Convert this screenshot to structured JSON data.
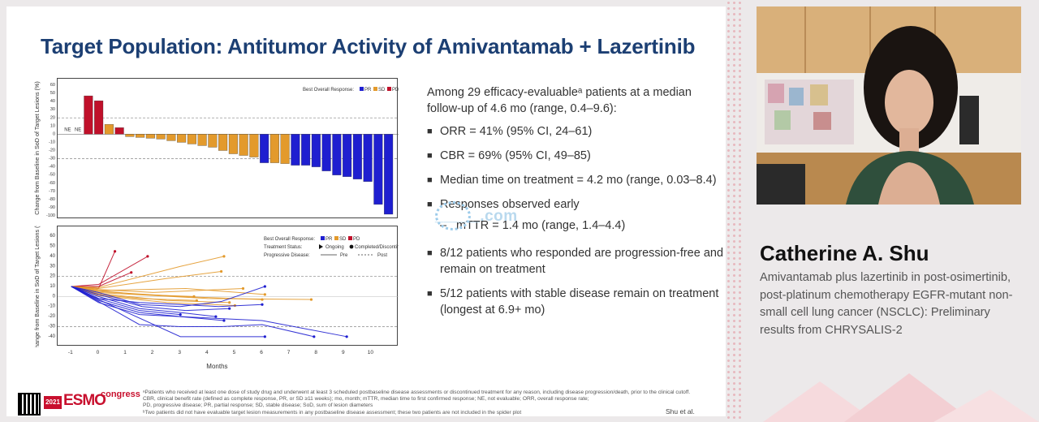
{
  "slide": {
    "title": "Target Population: Antitumor Activity of Amivantamab + Lazertinib",
    "bullets": {
      "intro": "Among 29 efficacy-evaluableᵃ patients at a median follow-up of 4.6 mo (range, 0.4–9.6):",
      "items": [
        "ORR = 41% (95% CI, 24–61)",
        "CBR = 69% (95% CI, 49–85)",
        "Median time on treatment = 4.2 mo (range, 0.03–8.4)",
        "Responses observed early"
      ],
      "sub_item": "mTTR = 1.4 mo (range, 1.4–4.4)",
      "items_after": [
        "8/12 patients who responded are progression-free and remain on treatment",
        "5/12 patients with stable disease remain on treatment (longest at 6.9+ mo)"
      ]
    },
    "watermark": "_____.com",
    "footnote_lines": [
      "ᵃPatients who received at least one dose of study drug and underwent at least 3 scheduled postbaseline disease assessments or discontinued treatment for any reason, including disease progression/death, prior to the clinical cutoff.",
      "CBR, clinical benefit rate (defined as complete response, PR, or SD ≥11 weeks); mo, month; mTTR, median time to first confirmed response; NE, not evaluable; ORR, overall response rate;",
      "PD, progressive disease; PR, partial response; SD, stable disease; SoD, sum of lesion diameters",
      "ᵇTwo patients did not have evaluable target lesion measurements in any postbaseline disease assessment; these two patients are not included in the spider plot"
    ],
    "citation": "Shu et al. #1193MO",
    "logo": {
      "year": "2021",
      "name": "ESMO",
      "suffix": "congress"
    }
  },
  "speaker": {
    "name": "Catherine A. Shu",
    "talk_title": "Amivantamab plus lazertinib in post-osimertinib, post-platinum chemotherapy EGFR-mutant non-small cell lung cancer (NSCLC): Preliminary results from CHRYSALIS-2"
  },
  "colors": {
    "PR": "#1f1fd0",
    "SD": "#e39a2c",
    "PD": "#c0102a",
    "title": "#1c3f73"
  },
  "chart_data": [
    {
      "type": "bar",
      "ylabel": "Change from Baseline in SoD of Target Lesions (%)",
      "ylim": [
        -100,
        60
      ],
      "yticks": [
        60,
        50,
        40,
        30,
        20,
        10,
        0,
        -10,
        -20,
        -30,
        -40,
        -50,
        -60,
        -70,
        -80,
        -90,
        -100
      ],
      "reference_lines": [
        20,
        -30
      ],
      "legend": {
        "title": "Best Overall Response:",
        "entries": [
          "PR",
          "SD",
          "PD"
        ],
        "position": "top-right"
      },
      "ne_labels": [
        "NE",
        "NE"
      ],
      "values": [
        0,
        0,
        47,
        41,
        12,
        8,
        -3,
        -4,
        -5,
        -6,
        -8,
        -10,
        -12,
        -14,
        -16,
        -20,
        -24,
        -26,
        -28,
        -35,
        -35,
        -36,
        -38,
        -38,
        -40,
        -45,
        -50,
        -52,
        -55,
        -58,
        -86,
        -98
      ],
      "responses": [
        "NE",
        "NE",
        "PD",
        "PD",
        "SD",
        "PD",
        "SD",
        "SD",
        "SD",
        "SD",
        "SD",
        "SD",
        "SD",
        "SD",
        "SD",
        "SD",
        "SD",
        "SD",
        "SD",
        "PR",
        "SD",
        "SD",
        "PR",
        "PR",
        "PR",
        "PR",
        "PR",
        "PR",
        "PR",
        "PR",
        "PR",
        "PR"
      ]
    },
    {
      "type": "line",
      "xlabel": "Months",
      "ylabel": "Change from Baseline in SoD of Target Lesions (%)",
      "xlim": [
        -1.5,
        11
      ],
      "xticks": [
        -1,
        0,
        1,
        2,
        3,
        4,
        5,
        6,
        7,
        8,
        9,
        10
      ],
      "ylim": [
        -45,
        65
      ],
      "yticks": [
        60,
        50,
        40,
        30,
        20,
        10,
        0,
        -10,
        -20,
        -30,
        -40
      ],
      "reference_lines": [
        20,
        -30
      ],
      "legend": {
        "response_title": "Best Overall Response:",
        "response_entries": [
          "PR",
          "SD",
          "PD"
        ],
        "status_title": "Treatment Status:",
        "status_entries": [
          "Ongoing",
          "Completed/Discontinued"
        ],
        "progression_title": "Progressive Disease:",
        "progression_entries": [
          "Pre",
          "Post"
        ],
        "position": "top-right"
      },
      "series": [
        {
          "response": "PD",
          "x": [
            -1,
            0,
            0.6
          ],
          "y": [
            10,
            8,
            45
          ]
        },
        {
          "response": "PD",
          "x": [
            -1,
            0,
            1.8
          ],
          "y": [
            10,
            12,
            40
          ]
        },
        {
          "response": "PD",
          "x": [
            -1,
            0,
            1.2
          ],
          "y": [
            10,
            10,
            24
          ]
        },
        {
          "response": "SD",
          "x": [
            -1,
            0,
            2.5,
            4.5
          ],
          "y": [
            10,
            8,
            18,
            25
          ]
        },
        {
          "response": "SD",
          "x": [
            -1,
            0,
            3,
            4.6
          ],
          "y": [
            10,
            9,
            30,
            40
          ]
        },
        {
          "response": "SD",
          "x": [
            -1,
            0,
            3.2,
            6.1
          ],
          "y": [
            10,
            6,
            8,
            2
          ]
        },
        {
          "response": "SD",
          "x": [
            -1,
            0,
            2,
            5.3
          ],
          "y": [
            10,
            7,
            4,
            8
          ]
        },
        {
          "response": "SD",
          "x": [
            -1,
            0,
            3,
            6
          ],
          "y": [
            10,
            5,
            0,
            -3
          ]
        },
        {
          "response": "SD",
          "x": [
            -1,
            0,
            4,
            7.8
          ],
          "y": [
            10,
            4,
            -2,
            -3
          ]
        },
        {
          "response": "SD",
          "x": [
            -1,
            0,
            1.5,
            3.5
          ],
          "y": [
            10,
            6,
            2,
            0
          ]
        },
        {
          "response": "SD",
          "x": [
            -1,
            0,
            2.5,
            4.8
          ],
          "y": [
            10,
            3,
            -4,
            -6
          ]
        },
        {
          "response": "SD",
          "x": [
            -1,
            0,
            1.5,
            3.6
          ],
          "y": [
            10,
            2,
            -2,
            -4
          ]
        },
        {
          "response": "SD",
          "x": [
            -1,
            0,
            2.5,
            5
          ],
          "y": [
            10,
            1,
            -6,
            -9
          ]
        },
        {
          "response": "PR",
          "x": [
            -1,
            0,
            1.5,
            3,
            4.5,
            6.1
          ],
          "y": [
            10,
            4,
            -8,
            -10,
            -5,
            10
          ]
        },
        {
          "response": "PR",
          "x": [
            -1,
            0,
            1.6,
            3.2,
            4.8
          ],
          "y": [
            10,
            2,
            -10,
            -14,
            -12
          ]
        },
        {
          "response": "PR",
          "x": [
            -1,
            0,
            1.5,
            3,
            4.3
          ],
          "y": [
            10,
            0,
            -12,
            -16,
            -20
          ]
        },
        {
          "response": "PR",
          "x": [
            -1,
            0,
            1.5,
            3
          ],
          "y": [
            10,
            -2,
            -14,
            -18
          ]
        },
        {
          "response": "PR",
          "x": [
            -1,
            0,
            1.5,
            3,
            4.6
          ],
          "y": [
            10,
            -4,
            -16,
            -20,
            -24
          ]
        },
        {
          "response": "PR",
          "x": [
            -1,
            0,
            1.5,
            3,
            4.5,
            6,
            7.9
          ],
          "y": [
            10,
            -5,
            -28,
            -30,
            -30,
            -28,
            -40
          ]
        },
        {
          "response": "PR",
          "x": [
            -1,
            0,
            3,
            5,
            6.1
          ],
          "y": [
            10,
            -3,
            -40,
            -40,
            -40
          ]
        },
        {
          "response": "PR",
          "x": [
            -1,
            0,
            1.5,
            3,
            4.5,
            6,
            9.1
          ],
          "y": [
            10,
            -6,
            -18,
            -20,
            -22,
            -24,
            -40
          ]
        },
        {
          "response": "PR",
          "x": [
            -1,
            0,
            1.5,
            3,
            4.4,
            6
          ],
          "y": [
            10,
            -2,
            -6,
            -8,
            -10,
            -8
          ]
        }
      ]
    }
  ]
}
